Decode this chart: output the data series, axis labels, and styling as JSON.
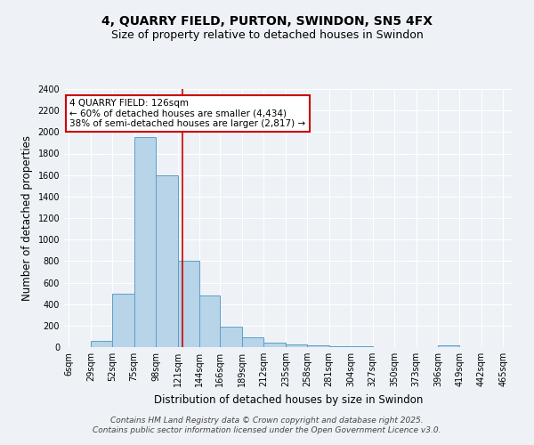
{
  "title": "4, QUARRY FIELD, PURTON, SWINDON, SN5 4FX",
  "subtitle": "Size of property relative to detached houses in Swindon",
  "xlabel": "Distribution of detached houses by size in Swindon",
  "ylabel": "Number of detached properties",
  "bins": [
    6,
    29,
    52,
    75,
    98,
    121,
    144,
    166,
    189,
    212,
    235,
    258,
    281,
    304,
    327,
    350,
    373,
    396,
    419,
    442,
    465
  ],
  "counts": [
    0,
    60,
    500,
    1950,
    1600,
    800,
    480,
    190,
    90,
    40,
    25,
    15,
    10,
    5,
    0,
    0,
    0,
    15,
    0,
    0
  ],
  "bar_color": "#b8d4e8",
  "bar_edge_color": "#5a9fc7",
  "red_line_x": 126,
  "annotation_title": "4 QUARRY FIELD: 126sqm",
  "annotation_line1": "← 60% of detached houses are smaller (4,434)",
  "annotation_line2": "38% of semi-detached houses are larger (2,817) →",
  "annotation_box_color": "#ffffff",
  "annotation_box_edge": "#cc0000",
  "red_line_color": "#cc0000",
  "ylim": [
    0,
    2400
  ],
  "yticks": [
    0,
    200,
    400,
    600,
    800,
    1000,
    1200,
    1400,
    1600,
    1800,
    2000,
    2200,
    2400
  ],
  "footer1": "Contains HM Land Registry data © Crown copyright and database right 2025.",
  "footer2": "Contains public sector information licensed under the Open Government Licence v3.0.",
  "bg_color": "#eef2f7",
  "grid_color": "#ffffff",
  "title_fontsize": 10,
  "subtitle_fontsize": 9,
  "axis_label_fontsize": 8.5,
  "tick_fontsize": 7,
  "footer_fontsize": 6.5,
  "annotation_fontsize": 7.5
}
